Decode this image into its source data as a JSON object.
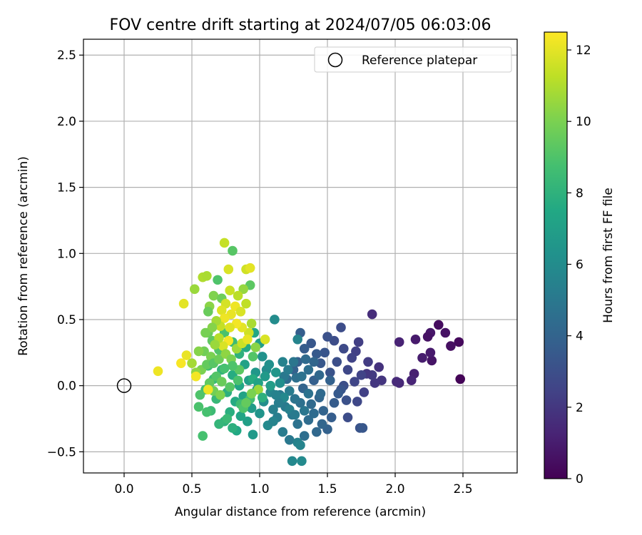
{
  "chart_data": {
    "type": "scatter",
    "title": "FOV centre drift starting at 2024/07/05 06:03:06",
    "xlabel": "Angular distance from reference (arcmin)",
    "ylabel": "Rotation from reference (arcmin)",
    "xlim": [
      -0.3,
      2.9
    ],
    "ylim": [
      -0.66,
      2.62
    ],
    "xticks": [
      "0.0",
      "0.5",
      "1.0",
      "1.5",
      "2.0",
      "2.5"
    ],
    "yticks": [
      "−0.5",
      "0.0",
      "0.5",
      "1.0",
      "1.5",
      "2.0",
      "2.5"
    ],
    "grid": true,
    "legend": {
      "placement": "top-right",
      "entries": [
        "Reference platepar"
      ]
    },
    "reference_point": {
      "x": 0.0,
      "y": 0.0
    },
    "colorbar": {
      "label": "Hours from first FF file",
      "range": [
        0,
        12.5
      ],
      "ticks": [
        "0",
        "2",
        "4",
        "6",
        "8",
        "10",
        "12"
      ],
      "colormap": "viridis"
    },
    "points": [
      {
        "x": 2.48,
        "y": 0.05,
        "h": 0.1
      },
      {
        "x": 2.47,
        "y": 0.33,
        "h": 0.3
      },
      {
        "x": 2.41,
        "y": 0.3,
        "h": 0.5
      },
      {
        "x": 2.37,
        "y": 0.4,
        "h": 0.6
      },
      {
        "x": 2.32,
        "y": 0.46,
        "h": 0.4
      },
      {
        "x": 2.26,
        "y": 0.4,
        "h": 0.8
      },
      {
        "x": 2.27,
        "y": 0.19,
        "h": 0.7
      },
      {
        "x": 2.26,
        "y": 0.25,
        "h": 0.9
      },
      {
        "x": 2.24,
        "y": 0.37,
        "h": 0.6
      },
      {
        "x": 2.2,
        "y": 0.21,
        "h": 1.0
      },
      {
        "x": 2.15,
        "y": 0.35,
        "h": 0.9
      },
      {
        "x": 2.14,
        "y": 0.09,
        "h": 1.1
      },
      {
        "x": 2.12,
        "y": 0.04,
        "h": 1.3
      },
      {
        "x": 2.03,
        "y": 0.33,
        "h": 1.2
      },
      {
        "x": 2.03,
        "y": 0.02,
        "h": 1.4
      },
      {
        "x": 2.01,
        "y": 0.03,
        "h": 1.5
      },
      {
        "x": 1.83,
        "y": 0.54,
        "h": 1.6
      },
      {
        "x": 1.88,
        "y": 0.14,
        "h": 1.8
      },
      {
        "x": 1.9,
        "y": 0.04,
        "h": 1.9
      },
      {
        "x": 1.85,
        "y": 0.02,
        "h": 2.0
      },
      {
        "x": 1.83,
        "y": 0.08,
        "h": 2.1
      },
      {
        "x": 1.8,
        "y": 0.18,
        "h": 2.2
      },
      {
        "x": 1.79,
        "y": 0.09,
        "h": 2.0
      },
      {
        "x": 1.73,
        "y": 0.33,
        "h": 2.3
      },
      {
        "x": 1.71,
        "y": 0.26,
        "h": 2.4
      },
      {
        "x": 1.75,
        "y": 0.08,
        "h": 2.5
      },
      {
        "x": 1.7,
        "y": 0.03,
        "h": 2.6
      },
      {
        "x": 1.68,
        "y": 0.21,
        "h": 2.5
      },
      {
        "x": 1.65,
        "y": 0.12,
        "h": 2.7
      },
      {
        "x": 1.62,
        "y": 0.28,
        "h": 2.8
      },
      {
        "x": 1.6,
        "y": 0.44,
        "h": 2.9
      },
      {
        "x": 1.57,
        "y": 0.18,
        "h": 3.0
      },
      {
        "x": 1.55,
        "y": 0.34,
        "h": 2.9
      },
      {
        "x": 1.5,
        "y": 0.37,
        "h": 3.1
      },
      {
        "x": 1.52,
        "y": 0.1,
        "h": 3.2
      },
      {
        "x": 1.48,
        "y": 0.25,
        "h": 3.3
      },
      {
        "x": 1.45,
        "y": 0.17,
        "h": 3.4
      },
      {
        "x": 1.42,
        "y": 0.24,
        "h": 3.5
      },
      {
        "x": 1.38,
        "y": 0.32,
        "h": 3.4
      },
      {
        "x": 1.33,
        "y": 0.28,
        "h": 3.6
      },
      {
        "x": 1.3,
        "y": 0.4,
        "h": 3.7
      },
      {
        "x": 1.28,
        "y": 0.18,
        "h": 3.8
      },
      {
        "x": 1.25,
        "y": 0.12,
        "h": 3.9
      },
      {
        "x": 1.62,
        "y": 0.0,
        "h": 3.0
      },
      {
        "x": 1.6,
        "y": -0.03,
        "h": 3.3
      },
      {
        "x": 1.58,
        "y": -0.06,
        "h": 3.5
      },
      {
        "x": 1.64,
        "y": -0.11,
        "h": 3.1
      },
      {
        "x": 1.72,
        "y": -0.12,
        "h": 2.7
      },
      {
        "x": 1.77,
        "y": -0.05,
        "h": 2.4
      },
      {
        "x": 1.65,
        "y": -0.24,
        "h": 2.9
      },
      {
        "x": 1.74,
        "y": -0.32,
        "h": 3.2
      },
      {
        "x": 1.76,
        "y": -0.32,
        "h": 3.4
      },
      {
        "x": 1.55,
        "y": -0.13,
        "h": 3.6
      },
      {
        "x": 1.53,
        "y": -0.24,
        "h": 3.7
      },
      {
        "x": 1.5,
        "y": -0.33,
        "h": 3.9
      },
      {
        "x": 1.47,
        "y": -0.19,
        "h": 4.0
      },
      {
        "x": 1.44,
        "y": -0.09,
        "h": 4.1
      },
      {
        "x": 1.42,
        "y": -0.35,
        "h": 4.2
      },
      {
        "x": 1.4,
        "y": 0.04,
        "h": 3.8
      },
      {
        "x": 1.38,
        "y": -0.14,
        "h": 4.3
      },
      {
        "x": 1.36,
        "y": -0.26,
        "h": 4.4
      },
      {
        "x": 1.33,
        "y": -0.38,
        "h": 4.5
      },
      {
        "x": 1.32,
        "y": -0.02,
        "h": 4.0
      },
      {
        "x": 1.3,
        "y": -0.13,
        "h": 4.6
      },
      {
        "x": 1.28,
        "y": -0.29,
        "h": 4.7
      },
      {
        "x": 1.26,
        "y": -0.1,
        "h": 4.8
      },
      {
        "x": 1.24,
        "y": -0.22,
        "h": 4.9
      },
      {
        "x": 1.22,
        "y": -0.41,
        "h": 5.0
      },
      {
        "x": 1.2,
        "y": 0.05,
        "h": 4.4
      },
      {
        "x": 1.19,
        "y": -0.16,
        "h": 5.1
      },
      {
        "x": 1.17,
        "y": -0.35,
        "h": 5.2
      },
      {
        "x": 1.15,
        "y": -0.07,
        "h": 5.0
      },
      {
        "x": 1.13,
        "y": -0.24,
        "h": 5.3
      },
      {
        "x": 1.28,
        "y": -0.43,
        "h": 5.5
      },
      {
        "x": 1.3,
        "y": -0.45,
        "h": 5.6
      },
      {
        "x": 1.24,
        "y": -0.57,
        "h": 5.8
      },
      {
        "x": 1.31,
        "y": -0.57,
        "h": 5.9
      },
      {
        "x": 1.45,
        "y": -0.06,
        "h": 4.3
      },
      {
        "x": 1.52,
        "y": 0.04,
        "h": 3.9
      },
      {
        "x": 1.44,
        "y": 0.08,
        "h": 4.2
      },
      {
        "x": 1.36,
        "y": 0.12,
        "h": 4.5
      },
      {
        "x": 1.27,
        "y": 0.06,
        "h": 4.6
      },
      {
        "x": 1.22,
        "y": -0.04,
        "h": 5.2
      },
      {
        "x": 1.18,
        "y": 0.07,
        "h": 5.0
      },
      {
        "x": 1.28,
        "y": 0.35,
        "h": 5.6
      },
      {
        "x": 1.11,
        "y": 0.5,
        "h": 6.0
      },
      {
        "x": 1.1,
        "y": -0.18,
        "h": 5.4
      },
      {
        "x": 1.08,
        "y": -0.05,
        "h": 5.7
      },
      {
        "x": 1.06,
        "y": -0.3,
        "h": 5.9
      },
      {
        "x": 1.05,
        "y": 0.12,
        "h": 6.0
      },
      {
        "x": 1.03,
        "y": -0.12,
        "h": 6.1
      },
      {
        "x": 1.02,
        "y": 0.22,
        "h": 6.3
      },
      {
        "x": 1.0,
        "y": -0.21,
        "h": 6.4
      },
      {
        "x": 0.98,
        "y": -0.03,
        "h": 6.5
      },
      {
        "x": 0.97,
        "y": 0.1,
        "h": 6.6
      },
      {
        "x": 0.95,
        "y": -0.37,
        "h": 6.7
      },
      {
        "x": 0.94,
        "y": -0.17,
        "h": 6.8
      },
      {
        "x": 0.92,
        "y": 0.04,
        "h": 6.9
      },
      {
        "x": 0.91,
        "y": -0.27,
        "h": 7.0
      },
      {
        "x": 0.89,
        "y": 0.16,
        "h": 7.1
      },
      {
        "x": 0.88,
        "y": -0.08,
        "h": 7.2
      },
      {
        "x": 0.86,
        "y": -0.23,
        "h": 7.3
      },
      {
        "x": 0.85,
        "y": 0.0,
        "h": 7.4
      },
      {
        "x": 0.83,
        "y": -0.34,
        "h": 7.5
      },
      {
        "x": 0.82,
        "y": -0.12,
        "h": 7.6
      },
      {
        "x": 0.8,
        "y": 0.08,
        "h": 7.7
      },
      {
        "x": 0.78,
        "y": -0.2,
        "h": 7.8
      },
      {
        "x": 0.76,
        "y": -0.05,
        "h": 7.9
      },
      {
        "x": 0.74,
        "y": -0.27,
        "h": 8.0
      },
      {
        "x": 0.72,
        "y": 0.12,
        "h": 8.1
      },
      {
        "x": 0.7,
        "y": -0.29,
        "h": 8.2
      },
      {
        "x": 0.68,
        "y": -0.1,
        "h": 8.3
      },
      {
        "x": 0.66,
        "y": 0.05,
        "h": 8.4
      },
      {
        "x": 0.64,
        "y": -0.19,
        "h": 8.5
      },
      {
        "x": 0.62,
        "y": 0.15,
        "h": 8.6
      },
      {
        "x": 0.6,
        "y": -0.03,
        "h": 8.7
      },
      {
        "x": 0.58,
        "y": -0.38,
        "h": 8.8
      },
      {
        "x": 0.55,
        "y": -0.16,
        "h": 8.9
      },
      {
        "x": 0.56,
        "y": -0.07,
        "h": 9.0
      },
      {
        "x": 0.61,
        "y": -0.2,
        "h": 8.8
      },
      {
        "x": 0.76,
        "y": -0.25,
        "h": 8.4
      },
      {
        "x": 0.8,
        "y": -0.32,
        "h": 7.9
      },
      {
        "x": 0.86,
        "y": -0.14,
        "h": 8.6
      },
      {
        "x": 0.88,
        "y": -0.17,
        "h": 9.0
      },
      {
        "x": 0.93,
        "y": -0.1,
        "h": 8.7
      },
      {
        "x": 0.95,
        "y": 0.05,
        "h": 7.7
      },
      {
        "x": 0.99,
        "y": 0.02,
        "h": 7.2
      },
      {
        "x": 1.04,
        "y": 0.07,
        "h": 6.7
      },
      {
        "x": 1.07,
        "y": 0.16,
        "h": 6.2
      },
      {
        "x": 1.0,
        "y": 0.32,
        "h": 7.0
      },
      {
        "x": 0.96,
        "y": 0.4,
        "h": 7.4
      },
      {
        "x": 0.9,
        "y": 0.29,
        "h": 7.6
      },
      {
        "x": 0.85,
        "y": 0.24,
        "h": 8.0
      },
      {
        "x": 0.8,
        "y": 0.33,
        "h": 8.5
      },
      {
        "x": 0.74,
        "y": 0.4,
        "h": 8.9
      },
      {
        "x": 0.7,
        "y": 0.27,
        "h": 9.1
      },
      {
        "x": 0.65,
        "y": 0.34,
        "h": 9.4
      },
      {
        "x": 0.62,
        "y": 0.4,
        "h": 9.6
      },
      {
        "x": 0.59,
        "y": 0.26,
        "h": 9.8
      },
      {
        "x": 0.57,
        "y": 0.12,
        "h": 10.0
      },
      {
        "x": 0.55,
        "y": 0.26,
        "h": 10.2
      },
      {
        "x": 0.53,
        "y": 0.1,
        "h": 10.4
      },
      {
        "x": 0.5,
        "y": 0.17,
        "h": 10.8
      },
      {
        "x": 0.52,
        "y": 0.73,
        "h": 10.6
      },
      {
        "x": 0.58,
        "y": 0.82,
        "h": 11.0
      },
      {
        "x": 0.61,
        "y": 0.83,
        "h": 10.9
      },
      {
        "x": 0.63,
        "y": 0.6,
        "h": 10.3
      },
      {
        "x": 0.66,
        "y": 0.68,
        "h": 10.1
      },
      {
        "x": 0.69,
        "y": 0.8,
        "h": 9.0
      },
      {
        "x": 0.72,
        "y": 0.66,
        "h": 9.7
      },
      {
        "x": 0.74,
        "y": 1.08,
        "h": 11.4
      },
      {
        "x": 0.8,
        "y": 1.02,
        "h": 9.2
      },
      {
        "x": 0.77,
        "y": 0.88,
        "h": 11.8
      },
      {
        "x": 0.9,
        "y": 0.88,
        "h": 11.6
      },
      {
        "x": 0.93,
        "y": 0.89,
        "h": 12.0
      },
      {
        "x": 0.93,
        "y": 0.76,
        "h": 9.3
      },
      {
        "x": 0.88,
        "y": 0.73,
        "h": 10.5
      },
      {
        "x": 0.84,
        "y": 0.68,
        "h": 11.2
      },
      {
        "x": 0.78,
        "y": 0.72,
        "h": 11.5
      },
      {
        "x": 0.75,
        "y": 0.62,
        "h": 11.7
      },
      {
        "x": 0.72,
        "y": 0.57,
        "h": 11.9
      },
      {
        "x": 0.79,
        "y": 0.54,
        "h": 12.1
      },
      {
        "x": 0.82,
        "y": 0.6,
        "h": 12.2
      },
      {
        "x": 0.86,
        "y": 0.56,
        "h": 11.8
      },
      {
        "x": 0.9,
        "y": 0.62,
        "h": 11.3
      },
      {
        "x": 0.94,
        "y": 0.47,
        "h": 10.9
      },
      {
        "x": 0.92,
        "y": 0.4,
        "h": 11.6
      },
      {
        "x": 0.87,
        "y": 0.44,
        "h": 12.0
      },
      {
        "x": 0.83,
        "y": 0.47,
        "h": 12.3
      },
      {
        "x": 0.78,
        "y": 0.44,
        "h": 11.9
      },
      {
        "x": 0.74,
        "y": 0.51,
        "h": 12.2
      },
      {
        "x": 0.71,
        "y": 0.45,
        "h": 11.4
      },
      {
        "x": 0.68,
        "y": 0.49,
        "h": 10.8
      },
      {
        "x": 0.65,
        "y": 0.44,
        "h": 10.2
      },
      {
        "x": 0.62,
        "y": 0.56,
        "h": 9.6
      },
      {
        "x": 0.6,
        "y": 0.4,
        "h": 9.9
      },
      {
        "x": 0.77,
        "y": 0.34,
        "h": 12.4
      },
      {
        "x": 0.73,
        "y": 0.3,
        "h": 11.8
      },
      {
        "x": 0.7,
        "y": 0.36,
        "h": 11.1
      },
      {
        "x": 0.67,
        "y": 0.31,
        "h": 10.6
      },
      {
        "x": 0.64,
        "y": 0.22,
        "h": 10.0
      },
      {
        "x": 0.61,
        "y": 0.16,
        "h": 9.5
      },
      {
        "x": 0.66,
        "y": 0.17,
        "h": 9.2
      },
      {
        "x": 0.7,
        "y": 0.2,
        "h": 9.7
      },
      {
        "x": 0.75,
        "y": 0.24,
        "h": 10.4
      },
      {
        "x": 0.79,
        "y": 0.2,
        "h": 10.0
      },
      {
        "x": 0.83,
        "y": 0.28,
        "h": 10.7
      },
      {
        "x": 0.87,
        "y": 0.32,
        "h": 11.5
      },
      {
        "x": 0.91,
        "y": 0.35,
        "h": 12.1
      },
      {
        "x": 0.97,
        "y": 0.29,
        "h": 10.3
      },
      {
        "x": 0.95,
        "y": 0.22,
        "h": 9.1
      },
      {
        "x": 0.85,
        "y": 0.12,
        "h": 9.3
      },
      {
        "x": 0.8,
        "y": 0.15,
        "h": 9.0
      },
      {
        "x": 0.74,
        "y": 0.13,
        "h": 8.8
      },
      {
        "x": 0.68,
        "y": 0.07,
        "h": 9.1
      },
      {
        "x": 0.63,
        "y": 0.02,
        "h": 9.4
      },
      {
        "x": 0.72,
        "y": 0.03,
        "h": 9.6
      },
      {
        "x": 0.78,
        "y": -0.01,
        "h": 9.2
      },
      {
        "x": 0.84,
        "y": 0.04,
        "h": 8.9
      },
      {
        "x": 0.66,
        "y": -0.04,
        "h": 9.8
      },
      {
        "x": 0.71,
        "y": -0.07,
        "h": 10.1
      },
      {
        "x": 0.62,
        "y": -0.03,
        "h": 12.2
      },
      {
        "x": 0.53,
        "y": 0.07,
        "h": 12.3
      },
      {
        "x": 0.46,
        "y": 0.23,
        "h": 12.1
      },
      {
        "x": 0.42,
        "y": 0.17,
        "h": 12.4
      },
      {
        "x": 0.44,
        "y": 0.62,
        "h": 12.0
      },
      {
        "x": 0.25,
        "y": 0.11,
        "h": 12.2
      },
      {
        "x": 1.04,
        "y": 0.35,
        "h": 11.8
      },
      {
        "x": 0.99,
        "y": -0.03,
        "h": 10.6
      },
      {
        "x": 0.94,
        "y": -0.06,
        "h": 10.0
      },
      {
        "x": 0.9,
        "y": -0.13,
        "h": 9.5
      },
      {
        "x": 1.02,
        "y": -0.09,
        "h": 7.9
      },
      {
        "x": 1.08,
        "y": 0.0,
        "h": 6.9
      },
      {
        "x": 1.12,
        "y": 0.1,
        "h": 6.5
      },
      {
        "x": 1.15,
        "y": 0.02,
        "h": 6.1
      },
      {
        "x": 1.18,
        "y": -0.09,
        "h": 5.8
      },
      {
        "x": 1.22,
        "y": -0.18,
        "h": 5.4
      },
      {
        "x": 1.26,
        "y": -0.22,
        "h": 5.1
      },
      {
        "x": 1.33,
        "y": -0.19,
        "h": 4.9
      },
      {
        "x": 1.36,
        "y": -0.06,
        "h": 4.7
      },
      {
        "x": 1.4,
        "y": -0.21,
        "h": 4.4
      },
      {
        "x": 1.46,
        "y": -0.29,
        "h": 4.1
      },
      {
        "x": 1.4,
        "y": 0.18,
        "h": 4.1
      },
      {
        "x": 1.34,
        "y": 0.2,
        "h": 4.3
      },
      {
        "x": 1.31,
        "y": 0.07,
        "h": 4.7
      },
      {
        "x": 1.25,
        "y": 0.18,
        "h": 4.9
      },
      {
        "x": 1.21,
        "y": 0.12,
        "h": 5.2
      },
      {
        "x": 1.17,
        "y": 0.18,
        "h": 5.5
      },
      {
        "x": 1.14,
        "y": -0.13,
        "h": 5.3
      },
      {
        "x": 1.1,
        "y": -0.27,
        "h": 5.6
      },
      {
        "x": 1.12,
        "y": -0.07,
        "h": 5.5
      }
    ]
  }
}
